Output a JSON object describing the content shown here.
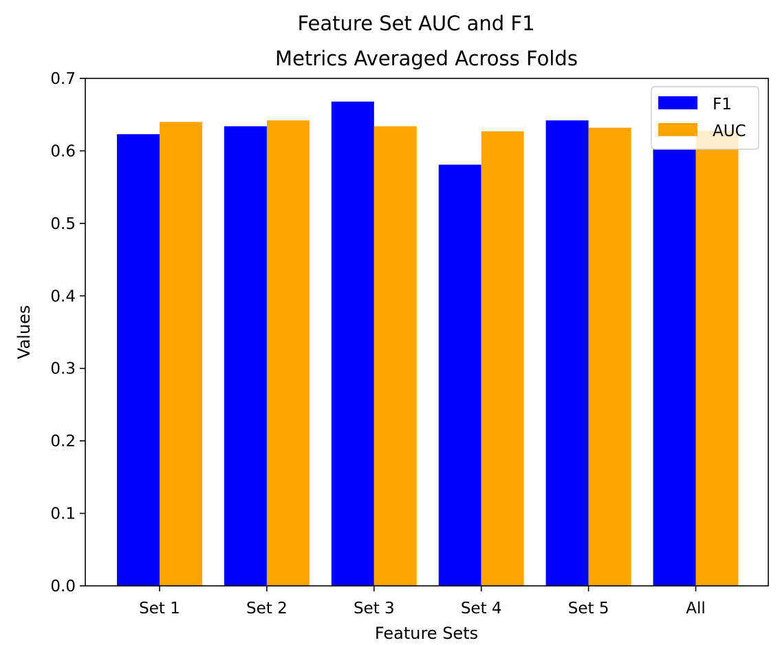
{
  "chart_data": {
    "type": "bar",
    "title": "Feature Set AUC and F1",
    "subtitle": "Metrics Averaged Across Folds",
    "xlabel": "Feature Sets",
    "ylabel": "Values",
    "categories": [
      "Set 1",
      "Set 2",
      "Set 3",
      "Set 4",
      "Set 5",
      "All"
    ],
    "series": [
      {
        "name": "F1",
        "color": "#0000ff",
        "values": [
          0.623,
          0.634,
          0.668,
          0.581,
          0.642,
          0.602
        ]
      },
      {
        "name": "AUC",
        "color": "#ffa500",
        "values": [
          0.64,
          0.642,
          0.634,
          0.627,
          0.632,
          0.628
        ]
      }
    ],
    "ylim": [
      0,
      0.7
    ],
    "yticks": [
      "0.0",
      "0.1",
      "0.2",
      "0.3",
      "0.4",
      "0.5",
      "0.6",
      "0.7"
    ],
    "grid": false,
    "legend_position": "top-right"
  }
}
